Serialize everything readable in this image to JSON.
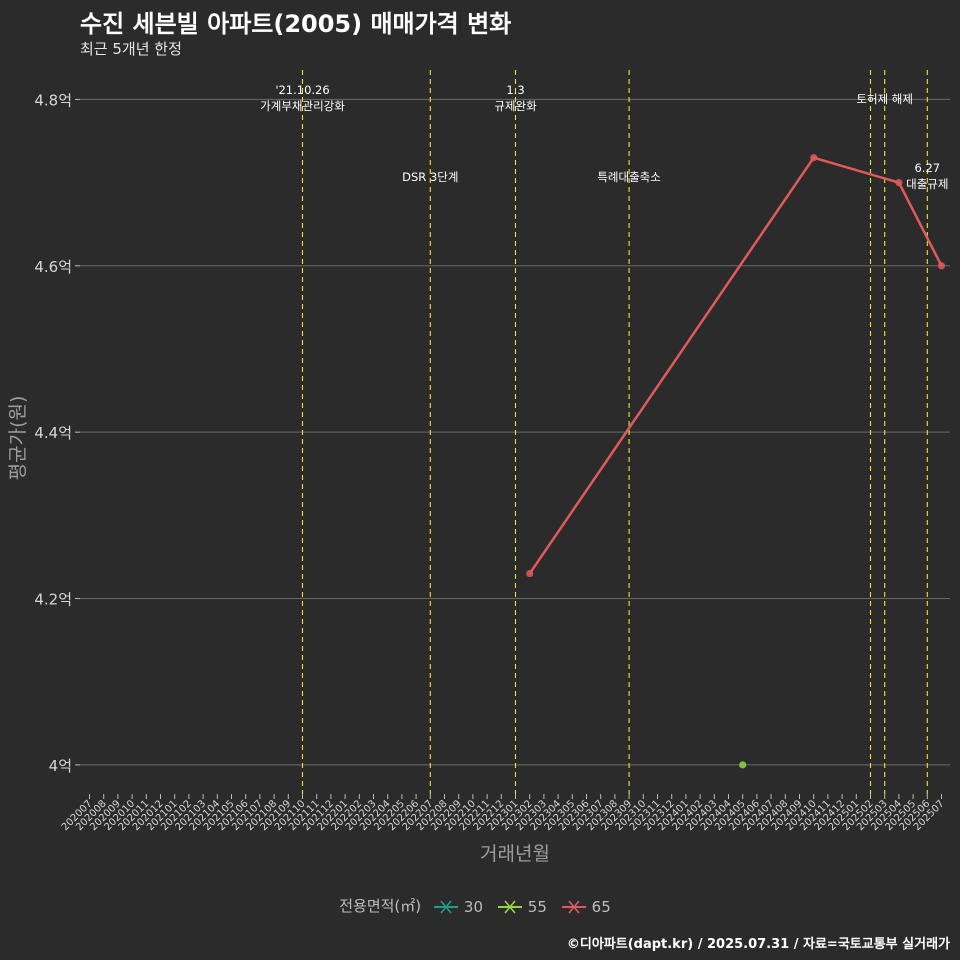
{
  "header": {
    "title": "수진 세븐빌 아파트(2005) 매매가격 변화",
    "subtitle": "최근 5개년 한정"
  },
  "caption": "©디아파트(dapt.kr) / 2025.07.31 / 자료=국토교통부 실거래가",
  "legend": {
    "title": "전용면적(㎡)",
    "items": [
      {
        "label": "30",
        "color": "#1f9e89"
      },
      {
        "label": "55",
        "color": "#90d743"
      },
      {
        "label": "65",
        "color": "#e05a5a"
      }
    ]
  },
  "chart_data": {
    "type": "line",
    "title": "수진 세븐빌 아파트(2005) 매매가격 변화",
    "subtitle": "최근 5개년 한정",
    "xlabel": "거래년월",
    "ylabel": "평균가(원)",
    "grid": true,
    "legend_position": "bottom",
    "categories": [
      "202007",
      "202008",
      "202009",
      "202010",
      "202011",
      "202012",
      "202101",
      "202102",
      "202103",
      "202104",
      "202105",
      "202106",
      "202107",
      "202108",
      "202109",
      "202110",
      "202111",
      "202112",
      "202201",
      "202202",
      "202203",
      "202204",
      "202205",
      "202206",
      "202207",
      "202208",
      "202209",
      "202210",
      "202211",
      "202212",
      "202301",
      "202302",
      "202303",
      "202304",
      "202305",
      "202306",
      "202307",
      "202308",
      "202309",
      "202310",
      "202311",
      "202312",
      "202401",
      "202402",
      "202403",
      "202404",
      "202405",
      "202406",
      "202407",
      "202408",
      "202409",
      "202410",
      "202411",
      "202412",
      "202501",
      "202502",
      "202503",
      "202504",
      "202505",
      "202506",
      "202507"
    ],
    "y_ticks": [
      {
        "value": 4.0,
        "label": "4억"
      },
      {
        "value": 4.2,
        "label": "4.2억"
      },
      {
        "value": 4.4,
        "label": "4.4억"
      },
      {
        "value": 4.6,
        "label": "4.6억"
      },
      {
        "value": 4.8,
        "label": "4.8억"
      }
    ],
    "ylim": [
      3.965,
      4.845
    ],
    "series": [
      {
        "name": "65",
        "color": "#e05a5a",
        "points": [
          {
            "x": "202302",
            "y": 4.23
          },
          {
            "x": "202410",
            "y": 4.73
          },
          {
            "x": "202504",
            "y": 4.7
          },
          {
            "x": "202507",
            "y": 4.6
          }
        ]
      },
      {
        "name": "55",
        "color": "#90d743",
        "points": [
          {
            "x": "202405",
            "y": 4.0
          }
        ]
      },
      {
        "name": "30",
        "color": "#1f9e89",
        "points": []
      }
    ],
    "events": [
      {
        "x": "202110",
        "lines": [
          "'21.10.26",
          "가계부채관리강화"
        ],
        "level": 1
      },
      {
        "x": "202207",
        "lines": [
          "DSR 3단계"
        ],
        "level": 3
      },
      {
        "x": "202301",
        "lines": [
          "1.3",
          "규제완화"
        ],
        "level": 1
      },
      {
        "x": "202309",
        "lines": [
          "특례대출축소"
        ],
        "level": 3
      },
      {
        "x": "202502",
        "lines": [],
        "level": 1
      },
      {
        "x": "202503",
        "lines": [
          "토허제 해제"
        ],
        "level": 2
      },
      {
        "x": "202506",
        "lines": [
          "6.27",
          "대출규제"
        ],
        "level": 4
      }
    ]
  }
}
